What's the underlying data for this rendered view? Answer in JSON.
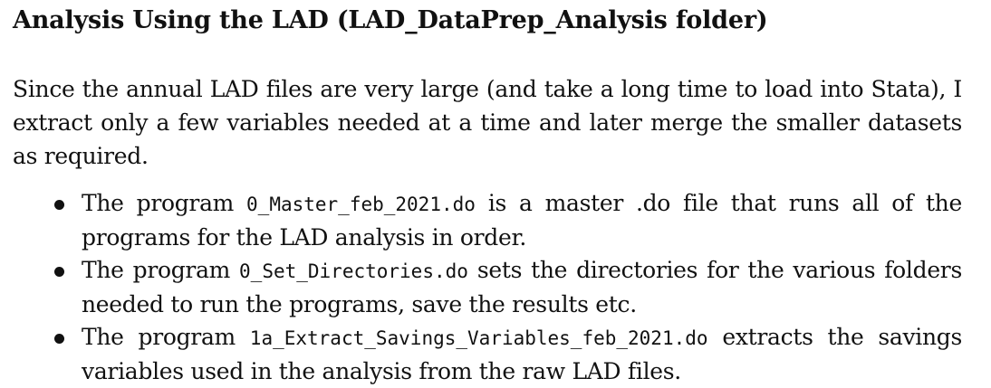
{
  "section": {
    "heading": "Analysis Using the LAD (LAD_DataPrep_Analysis folder)",
    "intro": "Since the annual LAD files are very large (and take a long time to load into Stata), I extract only a few variables needed at a time and later merge the smaller datasets as required."
  },
  "bullets": [
    {
      "prefix": "The program ",
      "code": "0_Master_feb_2021.do",
      "suffix": " is a master .do file that runs all of the programs for the LAD analysis in order."
    },
    {
      "prefix": "The program ",
      "code": "0_Set_Directories.do",
      "suffix": " sets the directories for the various folders needed to run the programs, save the results etc."
    },
    {
      "prefix": "The program ",
      "code": "1a_Extract_Savings_Variables_feb_2021.do",
      "suffix": " extracts the savings variables used in the analysis from the raw LAD files."
    }
  ]
}
